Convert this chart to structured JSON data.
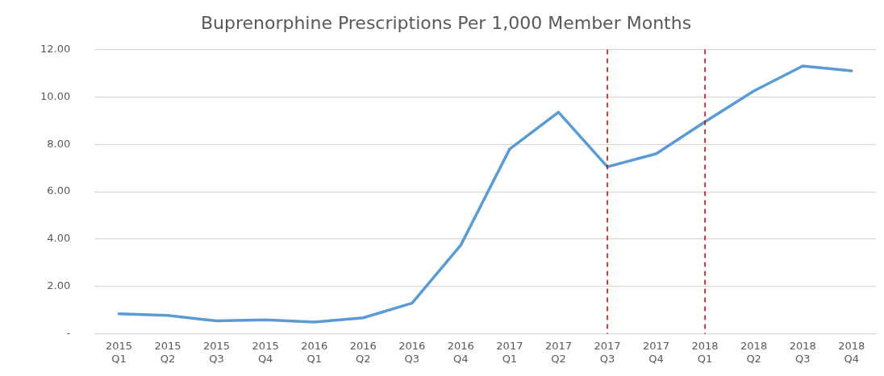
{
  "chart_data": {
    "type": "line",
    "title": "Buprenorphine Prescriptions Per 1,000 Member Months",
    "categories": [
      "2015\nQ1",
      "2015\nQ2",
      "2015\nQ3",
      "2015\nQ4",
      "2016\nQ1",
      "2016\nQ2",
      "2016\nQ3",
      "2016\nQ4",
      "2017\nQ1",
      "2017\nQ2",
      "2017\nQ3",
      "2017\nQ4",
      "2018\nQ1",
      "2018\nQ2",
      "2018\nQ3",
      "2018\nQ4"
    ],
    "series": [
      {
        "color": "#5b9bd5",
        "values": [
          0.85,
          0.78,
          0.55,
          0.6,
          0.5,
          0.68,
          1.3,
          3.75,
          7.8,
          9.35,
          7.05,
          7.6,
          8.95,
          10.25,
          11.3,
          11.1
        ]
      }
    ],
    "ylim": [
      0,
      12
    ],
    "yticks": [
      {
        "value": 0,
        "label": "-"
      },
      {
        "value": 2,
        "label": "2.00"
      },
      {
        "value": 4,
        "label": "4.00"
      },
      {
        "value": 6,
        "label": "6.00"
      },
      {
        "value": 8,
        "label": "8.00"
      },
      {
        "value": 10,
        "label": "10.00"
      },
      {
        "value": 12,
        "label": "12.00"
      }
    ],
    "grid": "y",
    "marker": "none",
    "line_style": "solid",
    "ref_lines": [
      {
        "axis": "x",
        "value": "2017\nQ3",
        "color": "#c00000",
        "line_style": "dashed"
      },
      {
        "axis": "x",
        "value": "2018\nQ1",
        "color": "#c00000",
        "line_style": "dashed"
      }
    ]
  }
}
